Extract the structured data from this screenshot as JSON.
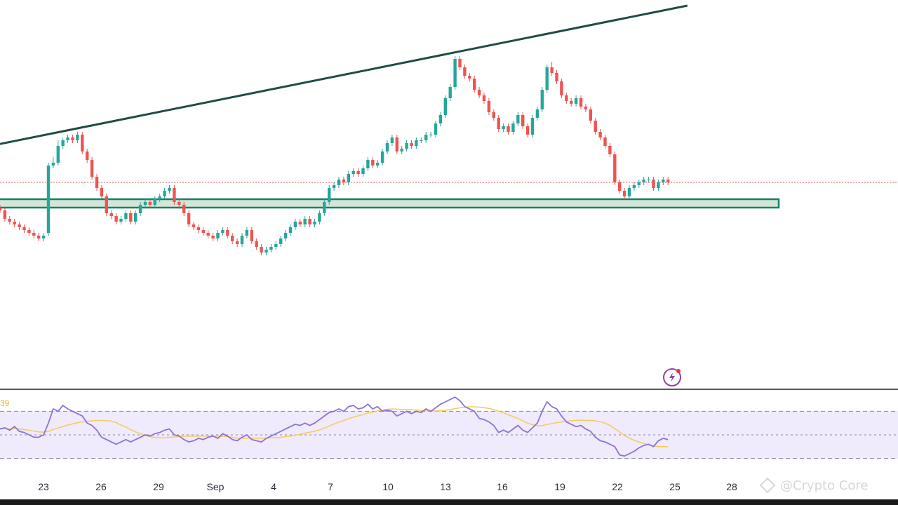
{
  "chart_data": {
    "type": "candlestick",
    "title": "",
    "price_range": [
      0.0,
      100.0
    ],
    "x_ticks": [
      "23",
      "26",
      "29",
      "Sep",
      "4",
      "7",
      "10",
      "13",
      "16",
      "19",
      "22",
      "25",
      "28"
    ],
    "current_price": 55.0,
    "candles": {
      "o": [
        46,
        45,
        42,
        41,
        40,
        39,
        38,
        37,
        36,
        35,
        37,
        61,
        62,
        68,
        70,
        71,
        70,
        72,
        66,
        63,
        57,
        53,
        50,
        44,
        43,
        41,
        42,
        44,
        41,
        44,
        47,
        48,
        47,
        49,
        50,
        52,
        53,
        48,
        47,
        44,
        40,
        39,
        38,
        37,
        36,
        35,
        37,
        38,
        36,
        34,
        33,
        36,
        38,
        34,
        32,
        30,
        31,
        32,
        33,
        35,
        37,
        39,
        41,
        40,
        42,
        40,
        41,
        44,
        48,
        53,
        54,
        56,
        55,
        58,
        59,
        58,
        60,
        63,
        61,
        62,
        66,
        69,
        71,
        66,
        67,
        69,
        68,
        70,
        70,
        72,
        72,
        76,
        79,
        85,
        89,
        99,
        96,
        93,
        92,
        88,
        86,
        84,
        80,
        78,
        74,
        75,
        73,
        76,
        79,
        75,
        72,
        78,
        81,
        88,
        96,
        94,
        91,
        86,
        84,
        83,
        85,
        82,
        81,
        77,
        73,
        71,
        68,
        65,
        55,
        52,
        50,
        53,
        54,
        55,
        56,
        56,
        53,
        55,
        56
      ],
      "c": [
        45,
        42,
        41,
        40,
        39,
        38,
        37,
        36,
        35,
        36,
        61,
        62,
        68,
        70,
        71,
        70,
        72,
        66,
        63,
        57,
        53,
        50,
        44,
        43,
        41,
        42,
        44,
        41,
        44,
        47,
        48,
        47,
        49,
        50,
        52,
        53,
        48,
        47,
        44,
        40,
        39,
        38,
        37,
        36,
        35,
        37,
        38,
        36,
        34,
        33,
        36,
        38,
        34,
        32,
        30,
        31,
        32,
        33,
        35,
        37,
        39,
        41,
        40,
        42,
        40,
        41,
        44,
        48,
        53,
        54,
        56,
        55,
        58,
        59,
        58,
        60,
        63,
        61,
        62,
        66,
        69,
        71,
        66,
        67,
        69,
        68,
        70,
        70,
        72,
        72,
        76,
        79,
        85,
        89,
        99,
        96,
        93,
        92,
        88,
        86,
        84,
        80,
        78,
        74,
        75,
        73,
        76,
        79,
        75,
        72,
        78,
        81,
        88,
        96,
        94,
        91,
        86,
        84,
        83,
        85,
        82,
        81,
        77,
        73,
        71,
        68,
        65,
        55,
        52,
        50,
        53,
        54,
        55,
        56,
        56,
        53,
        55,
        56,
        55
      ],
      "h": [
        47,
        46,
        43,
        42,
        41,
        40,
        39,
        38,
        37,
        37,
        62,
        64,
        70,
        71,
        72,
        72,
        73,
        73,
        67,
        64,
        58,
        54,
        51,
        45,
        44,
        43,
        45,
        45,
        45,
        48,
        49,
        49,
        50,
        51,
        53,
        54,
        54,
        49,
        48,
        45,
        41,
        40,
        39,
        38,
        37,
        38,
        39,
        39,
        37,
        35,
        37,
        39,
        39,
        35,
        33,
        32,
        33,
        34,
        36,
        38,
        40,
        42,
        42,
        43,
        43,
        42,
        45,
        49,
        54,
        55,
        57,
        57,
        59,
        60,
        60,
        61,
        64,
        64,
        63,
        67,
        70,
        72,
        72,
        68,
        70,
        70,
        71,
        71,
        73,
        73,
        77,
        80,
        86,
        90,
        100,
        100,
        97,
        94,
        93,
        89,
        87,
        85,
        81,
        79,
        76,
        76,
        77,
        80,
        80,
        76,
        79,
        82,
        89,
        97,
        98,
        95,
        92,
        87,
        85,
        86,
        86,
        83,
        82,
        78,
        74,
        72,
        69,
        66,
        56,
        53,
        54,
        55,
        56,
        57,
        57,
        57,
        56,
        57,
        57
      ],
      "l": [
        44,
        41,
        40,
        39,
        38,
        37,
        36,
        35,
        34,
        34,
        36,
        60,
        61,
        67,
        69,
        69,
        69,
        65,
        62,
        56,
        52,
        49,
        43,
        42,
        40,
        40,
        41,
        40,
        40,
        43,
        46,
        46,
        46,
        48,
        49,
        51,
        47,
        46,
        43,
        39,
        38,
        37,
        36,
        35,
        34,
        34,
        36,
        35,
        33,
        32,
        32,
        35,
        33,
        31,
        29,
        29,
        30,
        31,
        32,
        34,
        36,
        38,
        39,
        39,
        39,
        39,
        40,
        43,
        47,
        52,
        53,
        54,
        54,
        57,
        57,
        57,
        59,
        60,
        60,
        61,
        65,
        68,
        65,
        65,
        66,
        67,
        67,
        69,
        69,
        71,
        71,
        75,
        78,
        84,
        88,
        95,
        92,
        91,
        87,
        85,
        83,
        79,
        77,
        73,
        73,
        72,
        72,
        75,
        74,
        71,
        71,
        77,
        80,
        87,
        93,
        90,
        85,
        83,
        82,
        82,
        81,
        80,
        76,
        72,
        70,
        67,
        64,
        54,
        51,
        49,
        49,
        52,
        53,
        54,
        55,
        52,
        52,
        54,
        54
      ]
    },
    "trendline": {
      "from": [
        -2,
        68.0
      ],
      "to": [
        142,
        118.0
      ]
    },
    "support_zone": [
      49.0,
      46.0
    ],
    "rsi": {
      "tag": "39",
      "levels": [
        70,
        50,
        30
      ],
      "range": [
        25,
        75
      ],
      "values": [
        55,
        56,
        54,
        57,
        53,
        52,
        50,
        48,
        48,
        50,
        60,
        72,
        70,
        75,
        72,
        70,
        68,
        66,
        60,
        58,
        54,
        48,
        46,
        44,
        42,
        44,
        46,
        44,
        46,
        48,
        50,
        49,
        51,
        52,
        54,
        55,
        50,
        49,
        46,
        44,
        45,
        47,
        46,
        48,
        49,
        47,
        51,
        49,
        46,
        45,
        48,
        50,
        46,
        45,
        44,
        47,
        49,
        51,
        53,
        55,
        57,
        59,
        58,
        60,
        58,
        60,
        63,
        66,
        69,
        70,
        72,
        70,
        74,
        75,
        72,
        73,
        76,
        72,
        74,
        70,
        71,
        70,
        66,
        68,
        70,
        68,
        70,
        69,
        72,
        70,
        73,
        76,
        78,
        80,
        82,
        79,
        74,
        72,
        70,
        64,
        63,
        61,
        58,
        52,
        54,
        52,
        55,
        58,
        54,
        52,
        56,
        60,
        70,
        78,
        74,
        72,
        66,
        61,
        59,
        57,
        58,
        55,
        53,
        48,
        45,
        44,
        42,
        40,
        33,
        32,
        34,
        36,
        39,
        41,
        42,
        40,
        45,
        47,
        46
      ]
    }
  },
  "watermark": "@Crypto Core"
}
